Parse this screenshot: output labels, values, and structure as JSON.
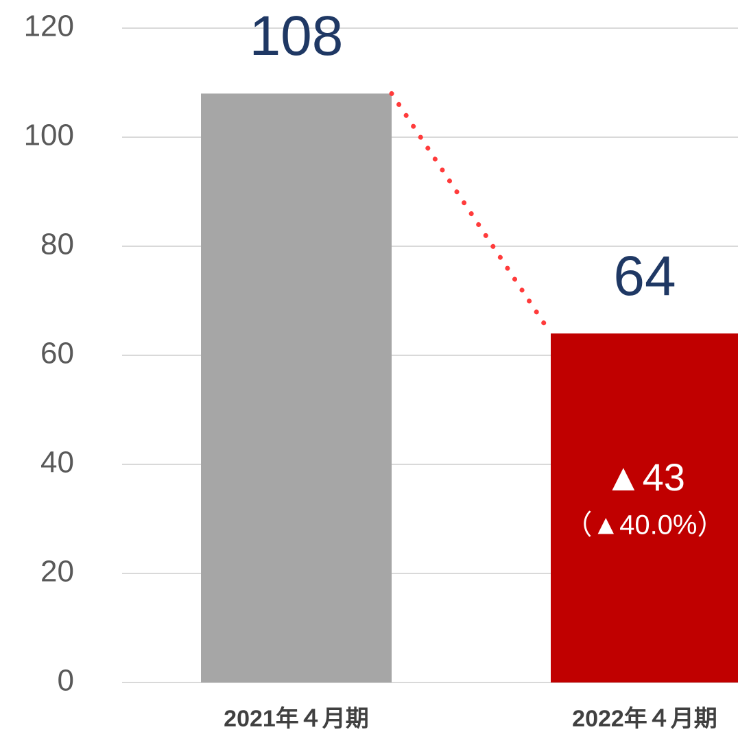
{
  "chart_data": {
    "type": "bar",
    "categories": [
      "2021年４月期",
      "2022年４月期"
    ],
    "values": [
      108,
      64
    ],
    "colors": [
      "#a6a6a6",
      "#c00000"
    ],
    "ylim": [
      0,
      120
    ],
    "yticks": [
      0,
      20,
      40,
      60,
      80,
      100,
      120
    ],
    "grid": true,
    "annotations": [
      "▲43",
      "（▲40.0%）"
    ]
  }
}
